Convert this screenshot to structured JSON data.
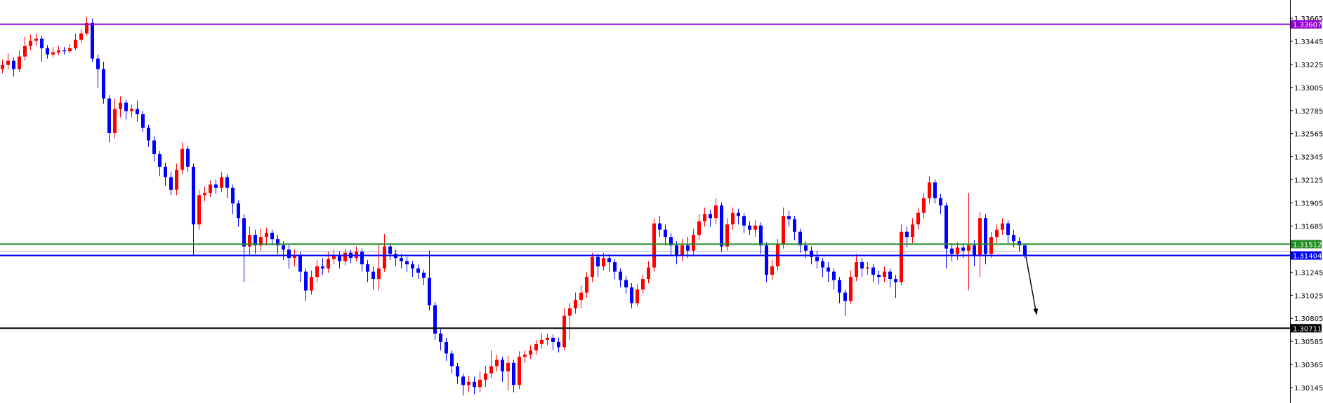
{
  "chart_data": {
    "type": "candlestick",
    "title": "",
    "xlabel": "",
    "ylabel": "",
    "ylim": [
      1.30065,
      1.33705
    ],
    "grid": false,
    "y_ticks": [
      "1.33665",
      "1.33445",
      "1.33225",
      "1.33005",
      "1.32785",
      "1.32565",
      "1.32345",
      "1.32125",
      "1.31905",
      "1.31685",
      "1.31245",
      "1.31025",
      "1.30805",
      "1.30585",
      "1.30365",
      "1.30145"
    ],
    "colors": {
      "bull": "#ff0000",
      "bear": "#0000ff",
      "axis": "#000000"
    },
    "levels": [
      {
        "price": 1.33607,
        "label": "1.33607",
        "color": "#9400d3"
      },
      {
        "price": 1.31512,
        "label": "1.31512",
        "color": "#228b22"
      },
      {
        "price": 1.31404,
        "label": "1.31404",
        "color": "#0000ff"
      },
      {
        "price": 1.30711,
        "label": "1.30711",
        "color": "#000000"
      }
    ],
    "bid_line": {
      "price": 1.31445,
      "color": "#c0c0c0"
    },
    "annotation": {
      "type": "arrow",
      "direction": "down",
      "color": "#000000"
    },
    "candles_ohlc": [
      [
        1.3318,
        1.3327,
        1.3314,
        1.3322
      ],
      [
        1.3322,
        1.3333,
        1.3318,
        1.3326
      ],
      [
        1.3326,
        1.3329,
        1.3311,
        1.3318
      ],
      [
        1.3318,
        1.3336,
        1.3315,
        1.333
      ],
      [
        1.333,
        1.3349,
        1.3326,
        1.334
      ],
      [
        1.334,
        1.3351,
        1.3336,
        1.3345
      ],
      [
        1.3345,
        1.3352,
        1.334,
        1.3347
      ],
      [
        1.3347,
        1.335,
        1.3325,
        1.3338
      ],
      [
        1.3338,
        1.3341,
        1.3328,
        1.3332
      ],
      [
        1.3332,
        1.3339,
        1.3329,
        1.3334
      ],
      [
        1.3334,
        1.334,
        1.3331,
        1.3336
      ],
      [
        1.3336,
        1.3339,
        1.3332,
        1.3335
      ],
      [
        1.3335,
        1.3342,
        1.3333,
        1.3338
      ],
      [
        1.3338,
        1.3352,
        1.3336,
        1.3346
      ],
      [
        1.3346,
        1.3356,
        1.3343,
        1.3352
      ],
      [
        1.3352,
        1.3368,
        1.335,
        1.3362
      ],
      [
        1.3362,
        1.3366,
        1.3325,
        1.3328
      ],
      [
        1.3328,
        1.3332,
        1.33,
        1.3318
      ],
      [
        1.3318,
        1.3325,
        1.3285,
        1.329
      ],
      [
        1.329,
        1.3293,
        1.3248,
        1.3257
      ],
      [
        1.3257,
        1.329,
        1.3252,
        1.328
      ],
      [
        1.328,
        1.3292,
        1.3272,
        1.3286
      ],
      [
        1.3286,
        1.3289,
        1.327,
        1.3278
      ],
      [
        1.3278,
        1.3284,
        1.3272,
        1.328
      ],
      [
        1.328,
        1.3288,
        1.3268,
        1.3275
      ],
      [
        1.3275,
        1.3278,
        1.3258,
        1.3262
      ],
      [
        1.3262,
        1.3265,
        1.3244,
        1.325
      ],
      [
        1.325,
        1.3254,
        1.323,
        1.3237
      ],
      [
        1.3237,
        1.324,
        1.3216,
        1.3225
      ],
      [
        1.3225,
        1.3229,
        1.3207,
        1.3215
      ],
      [
        1.3215,
        1.322,
        1.3198,
        1.3203
      ],
      [
        1.3203,
        1.3228,
        1.3198,
        1.3222
      ],
      [
        1.3222,
        1.3248,
        1.3218,
        1.3242
      ],
      [
        1.3242,
        1.3245,
        1.322,
        1.3225
      ],
      [
        1.3225,
        1.3228,
        1.3141,
        1.317
      ],
      [
        1.317,
        1.3203,
        1.3165,
        1.3198
      ],
      [
        1.3198,
        1.3206,
        1.3192,
        1.32
      ],
      [
        1.32,
        1.3212,
        1.3196,
        1.3208
      ],
      [
        1.3208,
        1.3213,
        1.3199,
        1.3205
      ],
      [
        1.3205,
        1.322,
        1.3201,
        1.3215
      ],
      [
        1.3215,
        1.3218,
        1.3195,
        1.3205
      ],
      [
        1.3205,
        1.3208,
        1.318,
        1.319
      ],
      [
        1.319,
        1.3193,
        1.3168,
        1.3176
      ],
      [
        1.3176,
        1.318,
        1.3115,
        1.3149
      ],
      [
        1.3149,
        1.3168,
        1.314,
        1.316
      ],
      [
        1.316,
        1.3165,
        1.3142,
        1.315
      ],
      [
        1.315,
        1.3166,
        1.3145,
        1.3158
      ],
      [
        1.3158,
        1.3167,
        1.315,
        1.3162
      ],
      [
        1.3162,
        1.3165,
        1.315,
        1.3156
      ],
      [
        1.3156,
        1.316,
        1.3142,
        1.315
      ],
      [
        1.315,
        1.3154,
        1.3136,
        1.3146
      ],
      [
        1.3146,
        1.315,
        1.3128,
        1.3138
      ],
      [
        1.3138,
        1.3146,
        1.313,
        1.3141
      ],
      [
        1.3141,
        1.3144,
        1.3115,
        1.3125
      ],
      [
        1.3125,
        1.3128,
        1.3097,
        1.3107
      ],
      [
        1.3107,
        1.3126,
        1.3103,
        1.312
      ],
      [
        1.312,
        1.3136,
        1.3115,
        1.313
      ],
      [
        1.313,
        1.3138,
        1.3122,
        1.3128
      ],
      [
        1.3128,
        1.3144,
        1.3124,
        1.3137
      ],
      [
        1.3137,
        1.3146,
        1.3132,
        1.314
      ],
      [
        1.314,
        1.3144,
        1.3128,
        1.3135
      ],
      [
        1.3135,
        1.3147,
        1.3131,
        1.3143
      ],
      [
        1.3143,
        1.3146,
        1.3133,
        1.3138
      ],
      [
        1.3138,
        1.3149,
        1.3135,
        1.3144
      ],
      [
        1.3144,
        1.3147,
        1.3125,
        1.3132
      ],
      [
        1.3132,
        1.3136,
        1.3115,
        1.3125
      ],
      [
        1.3125,
        1.313,
        1.3108,
        1.3118
      ],
      [
        1.3118,
        1.3152,
        1.3107,
        1.3128
      ],
      [
        1.3128,
        1.3161,
        1.3125,
        1.3149
      ],
      [
        1.3149,
        1.3152,
        1.3136,
        1.3142
      ],
      [
        1.3142,
        1.3146,
        1.313,
        1.3138
      ],
      [
        1.3138,
        1.3142,
        1.3128,
        1.3135
      ],
      [
        1.3135,
        1.3139,
        1.3125,
        1.3132
      ],
      [
        1.3132,
        1.3135,
        1.312,
        1.3128
      ],
      [
        1.3128,
        1.3132,
        1.3118,
        1.3124
      ],
      [
        1.3124,
        1.3127,
        1.3112,
        1.3119
      ],
      [
        1.3119,
        1.3145,
        1.3088,
        1.3093
      ],
      [
        1.3093,
        1.3096,
        1.306,
        1.3066
      ],
      [
        1.3066,
        1.307,
        1.305,
        1.3058
      ],
      [
        1.3058,
        1.3062,
        1.304,
        1.3047
      ],
      [
        1.3047,
        1.305,
        1.3028,
        1.3035
      ],
      [
        1.3035,
        1.3038,
        1.3018,
        1.3025
      ],
      [
        1.3025,
        1.3028,
        1.3007,
        1.3017
      ],
      [
        1.3017,
        1.3026,
        1.301,
        1.302
      ],
      [
        1.302,
        1.3025,
        1.3008,
        1.3015
      ],
      [
        1.3015,
        1.303,
        1.301,
        1.3022
      ],
      [
        1.3022,
        1.3035,
        1.3015,
        1.3028
      ],
      [
        1.3028,
        1.305,
        1.3024,
        1.3035
      ],
      [
        1.3035,
        1.3046,
        1.303,
        1.3041
      ],
      [
        1.3041,
        1.3044,
        1.302,
        1.303
      ],
      [
        1.303,
        1.3045,
        1.3012,
        1.3038
      ],
      [
        1.3038,
        1.3041,
        1.301,
        1.3017
      ],
      [
        1.3017,
        1.3049,
        1.3013,
        1.3044
      ],
      [
        1.3044,
        1.305,
        1.3038,
        1.3046
      ],
      [
        1.3046,
        1.3055,
        1.3042,
        1.305
      ],
      [
        1.305,
        1.306,
        1.3046,
        1.3056
      ],
      [
        1.3056,
        1.3066,
        1.3052,
        1.306
      ],
      [
        1.306,
        1.3066,
        1.3055,
        1.3062
      ],
      [
        1.3062,
        1.3065,
        1.305,
        1.3058
      ],
      [
        1.3058,
        1.3062,
        1.3048,
        1.3053
      ],
      [
        1.3053,
        1.309,
        1.305,
        1.3083
      ],
      [
        1.3083,
        1.3095,
        1.306,
        1.309
      ],
      [
        1.309,
        1.3105,
        1.3085,
        1.3098
      ],
      [
        1.3098,
        1.3112,
        1.309,
        1.3105
      ],
      [
        1.3105,
        1.3125,
        1.31,
        1.312
      ],
      [
        1.312,
        1.3143,
        1.3115,
        1.3139
      ],
      [
        1.3139,
        1.3142,
        1.312,
        1.313
      ],
      [
        1.313,
        1.3143,
        1.3126,
        1.3138
      ],
      [
        1.3138,
        1.3142,
        1.3125,
        1.3134
      ],
      [
        1.3134,
        1.3137,
        1.3118,
        1.3125
      ],
      [
        1.3125,
        1.3128,
        1.311,
        1.3117
      ],
      [
        1.3117,
        1.3121,
        1.3104,
        1.311
      ],
      [
        1.311,
        1.3114,
        1.309,
        1.3095
      ],
      [
        1.3095,
        1.3113,
        1.3092,
        1.3108
      ],
      [
        1.3108,
        1.3122,
        1.3104,
        1.3118
      ],
      [
        1.3118,
        1.3135,
        1.3114,
        1.3129
      ],
      [
        1.3129,
        1.3176,
        1.3125,
        1.3171
      ],
      [
        1.3171,
        1.3178,
        1.3158,
        1.3165
      ],
      [
        1.3165,
        1.317,
        1.315,
        1.3158
      ],
      [
        1.3158,
        1.3162,
        1.314,
        1.315
      ],
      [
        1.315,
        1.3154,
        1.3132,
        1.3141
      ],
      [
        1.3141,
        1.3156,
        1.3135,
        1.315
      ],
      [
        1.315,
        1.3158,
        1.3138,
        1.3145
      ],
      [
        1.3145,
        1.3166,
        1.314,
        1.316
      ],
      [
        1.316,
        1.318,
        1.3155,
        1.3173
      ],
      [
        1.3173,
        1.3186,
        1.3168,
        1.318
      ],
      [
        1.318,
        1.3184,
        1.3168,
        1.3176
      ],
      [
        1.3176,
        1.3195,
        1.317,
        1.3188
      ],
      [
        1.3188,
        1.3191,
        1.3144,
        1.3149
      ],
      [
        1.3149,
        1.3176,
        1.3145,
        1.317
      ],
      [
        1.317,
        1.3186,
        1.3165,
        1.3181
      ],
      [
        1.3181,
        1.3185,
        1.317,
        1.3178
      ],
      [
        1.3178,
        1.3181,
        1.3162,
        1.3169
      ],
      [
        1.3169,
        1.3173,
        1.316,
        1.3165
      ],
      [
        1.3165,
        1.3174,
        1.3158,
        1.3169
      ],
      [
        1.3169,
        1.3172,
        1.3142,
        1.315
      ],
      [
        1.315,
        1.3153,
        1.3115,
        1.3122
      ],
      [
        1.3122,
        1.3136,
        1.3117,
        1.313
      ],
      [
        1.313,
        1.3156,
        1.3126,
        1.3151
      ],
      [
        1.3151,
        1.3186,
        1.3147,
        1.3178
      ],
      [
        1.3178,
        1.3183,
        1.3168,
        1.3175
      ],
      [
        1.3175,
        1.3178,
        1.3155,
        1.3163
      ],
      [
        1.3163,
        1.3166,
        1.3143,
        1.315
      ],
      [
        1.315,
        1.3154,
        1.3138,
        1.3145
      ],
      [
        1.3145,
        1.3149,
        1.3132,
        1.3139
      ],
      [
        1.3139,
        1.3145,
        1.3128,
        1.3135
      ],
      [
        1.3135,
        1.3138,
        1.312,
        1.3129
      ],
      [
        1.3129,
        1.3134,
        1.3115,
        1.3125
      ],
      [
        1.3125,
        1.3128,
        1.3108,
        1.3117
      ],
      [
        1.3117,
        1.312,
        1.3095,
        1.3105
      ],
      [
        1.3105,
        1.3108,
        1.3083,
        1.3097
      ],
      [
        1.3097,
        1.3126,
        1.3094,
        1.312
      ],
      [
        1.312,
        1.3142,
        1.3116,
        1.3134
      ],
      [
        1.3134,
        1.3138,
        1.312,
        1.3128
      ],
      [
        1.3128,
        1.3134,
        1.3122,
        1.3129
      ],
      [
        1.3129,
        1.3132,
        1.3115,
        1.3122
      ],
      [
        1.3122,
        1.3126,
        1.3113,
        1.312
      ],
      [
        1.312,
        1.313,
        1.3115,
        1.3125
      ],
      [
        1.3125,
        1.3128,
        1.311,
        1.3118
      ],
      [
        1.3118,
        1.3122,
        1.31,
        1.3115
      ],
      [
        1.3115,
        1.317,
        1.3112,
        1.3163
      ],
      [
        1.3163,
        1.3168,
        1.3148,
        1.3158
      ],
      [
        1.3158,
        1.3176,
        1.3152,
        1.317
      ],
      [
        1.317,
        1.3186,
        1.3165,
        1.3181
      ],
      [
        1.3181,
        1.32,
        1.3176,
        1.3195
      ],
      [
        1.3195,
        1.3216,
        1.319,
        1.321
      ],
      [
        1.321,
        1.3213,
        1.319,
        1.3195
      ],
      [
        1.3195,
        1.3199,
        1.318,
        1.3188
      ],
      [
        1.3188,
        1.3191,
        1.3128,
        1.3147
      ],
      [
        1.3147,
        1.3152,
        1.3135,
        1.3142
      ],
      [
        1.3142,
        1.3153,
        1.3136,
        1.3148
      ],
      [
        1.3148,
        1.3152,
        1.3138,
        1.3145
      ],
      [
        1.3145,
        1.32,
        1.3107,
        1.315
      ],
      [
        1.315,
        1.3155,
        1.313,
        1.314
      ],
      [
        1.314,
        1.3182,
        1.312,
        1.3176
      ],
      [
        1.3176,
        1.318,
        1.3132,
        1.3142
      ],
      [
        1.3142,
        1.3163,
        1.3138,
        1.3158
      ],
      [
        1.3158,
        1.317,
        1.3152,
        1.3165
      ],
      [
        1.3165,
        1.3176,
        1.316,
        1.3171
      ],
      [
        1.3171,
        1.3174,
        1.3152,
        1.316
      ],
      [
        1.316,
        1.3165,
        1.3148,
        1.3154
      ],
      [
        1.3154,
        1.3158,
        1.3144,
        1.315
      ],
      [
        1.315,
        1.3152,
        1.3138,
        1.3141
      ]
    ]
  }
}
